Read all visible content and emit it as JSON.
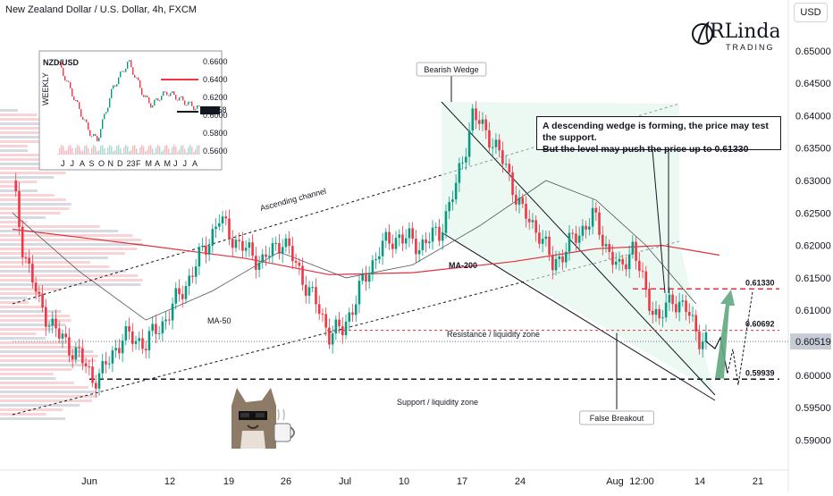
{
  "header": {
    "title": "New Zealand Dollar / U.S. Dollar, 4h, FXCM",
    "currency_button": "USD"
  },
  "logo": {
    "line1": "RLinda",
    "line2": "TRADING"
  },
  "callout": {
    "line1": "A descending wedge is forming, the price may test the support.",
    "line2": "But the level may push the price up to 0.61330"
  },
  "annotations": {
    "bearish_wedge": "Bearish Wedge",
    "ascending_channel": "Ascending channel",
    "ma200": "MA-200",
    "ma50": "MA-50",
    "resistance_zone": "Resistance / liquidity zone",
    "support_zone": "Support / liquidity zone",
    "false_breakout": "False Breakout"
  },
  "colors": {
    "bull": "#089981",
    "bear": "#f23645",
    "ma200": "#e0323f",
    "ma50": "#50535e",
    "level_red": "#e0323f",
    "level_black": "#131722",
    "wedge_fill": "#dff3ea",
    "arrow_green": "#5fa87f"
  },
  "chart_data": {
    "type": "candlestick",
    "title": "New Zealand Dollar / U.S. Dollar, 4h, FXCM",
    "y_axis": {
      "ticks": [
        "0.65000",
        "0.64500",
        "0.64000",
        "0.63500",
        "0.63000",
        "0.62500",
        "0.62000",
        "0.61500",
        "0.61000",
        "0.60500",
        "0.60000",
        "0.59500",
        "0.59000"
      ],
      "ylim": [
        0.5862,
        0.6537
      ]
    },
    "x_axis": {
      "ticks": [
        "Jun",
        "12",
        "19",
        "26",
        "Jul",
        "10",
        "17",
        "24",
        "Aug",
        "12:00",
        "14",
        "21"
      ]
    },
    "current_price": "0.60519",
    "levels": [
      {
        "name": "target",
        "value": 0.6133,
        "label": "0.61330"
      },
      {
        "name": "resistance",
        "value": 0.60692,
        "label": "0.60692"
      },
      {
        "name": "support",
        "value": 0.59939,
        "label": "0.59939"
      }
    ],
    "price_path": [
      {
        "t": 0,
        "v": 0.63
      },
      {
        "t": 3,
        "v": 0.62
      },
      {
        "t": 8,
        "v": 0.611
      },
      {
        "t": 14,
        "v": 0.606
      },
      {
        "t": 20,
        "v": 0.603
      },
      {
        "t": 24,
        "v": 0.5995
      },
      {
        "t": 27,
        "v": 0.6005
      },
      {
        "t": 33,
        "v": 0.606
      },
      {
        "t": 40,
        "v": 0.605
      },
      {
        "t": 45,
        "v": 0.608
      },
      {
        "t": 52,
        "v": 0.614
      },
      {
        "t": 58,
        "v": 0.62
      },
      {
        "t": 62,
        "v": 0.624
      },
      {
        "t": 68,
        "v": 0.62
      },
      {
        "t": 75,
        "v": 0.6175
      },
      {
        "t": 81,
        "v": 0.621
      },
      {
        "t": 87,
        "v": 0.615
      },
      {
        "t": 91,
        "v": 0.611
      },
      {
        "t": 95,
        "v": 0.6065
      },
      {
        "t": 99,
        "v": 0.607
      },
      {
        "t": 104,
        "v": 0.613
      },
      {
        "t": 110,
        "v": 0.6195
      },
      {
        "t": 116,
        "v": 0.6215
      },
      {
        "t": 122,
        "v": 0.62
      },
      {
        "t": 128,
        "v": 0.622
      },
      {
        "t": 133,
        "v": 0.629
      },
      {
        "t": 138,
        "v": 0.64
      },
      {
        "t": 143,
        "v": 0.637
      },
      {
        "t": 148,
        "v": 0.632
      },
      {
        "t": 153,
        "v": 0.625
      },
      {
        "t": 158,
        "v": 0.622
      },
      {
        "t": 162,
        "v": 0.617
      },
      {
        "t": 166,
        "v": 0.6195
      },
      {
        "t": 170,
        "v": 0.622
      },
      {
        "t": 174,
        "v": 0.6245
      },
      {
        "t": 178,
        "v": 0.62
      },
      {
        "t": 182,
        "v": 0.616
      },
      {
        "t": 186,
        "v": 0.62
      },
      {
        "t": 190,
        "v": 0.6125
      },
      {
        "t": 194,
        "v": 0.6085
      },
      {
        "t": 198,
        "v": 0.612
      },
      {
        "t": 202,
        "v": 0.61
      },
      {
        "t": 206,
        "v": 0.606
      },
      {
        "t": 208,
        "v": 0.6052
      }
    ],
    "t_range": [
      0,
      230
    ],
    "ma200": [
      {
        "t": 0,
        "v": 0.6225
      },
      {
        "t": 40,
        "v": 0.62
      },
      {
        "t": 70,
        "v": 0.618
      },
      {
        "t": 95,
        "v": 0.6155
      },
      {
        "t": 120,
        "v": 0.6158
      },
      {
        "t": 150,
        "v": 0.6175
      },
      {
        "t": 175,
        "v": 0.6195
      },
      {
        "t": 195,
        "v": 0.62
      },
      {
        "t": 212,
        "v": 0.6185
      }
    ],
    "ma50": [
      {
        "t": 0,
        "v": 0.625
      },
      {
        "t": 20,
        "v": 0.616
      },
      {
        "t": 40,
        "v": 0.6085
      },
      {
        "t": 60,
        "v": 0.613
      },
      {
        "t": 80,
        "v": 0.619
      },
      {
        "t": 100,
        "v": 0.615
      },
      {
        "t": 120,
        "v": 0.617
      },
      {
        "t": 140,
        "v": 0.623
      },
      {
        "t": 160,
        "v": 0.63
      },
      {
        "t": 175,
        "v": 0.627
      },
      {
        "t": 190,
        "v": 0.62
      },
      {
        "t": 205,
        "v": 0.611
      }
    ],
    "inset": {
      "symbol": "NZD/USD",
      "y_ticks": [
        "0.6600",
        "0.6400",
        "0.6200",
        "0.6000",
        "0.5800",
        "0.5600"
      ],
      "x_ticks": [
        "J",
        "J",
        "A",
        "S",
        "O",
        "N",
        "D",
        "23",
        "F",
        "M",
        "A",
        "M",
        "J",
        "J",
        "A"
      ],
      "current_price": "0.6058",
      "weekly_label": "WEEKLY"
    }
  }
}
